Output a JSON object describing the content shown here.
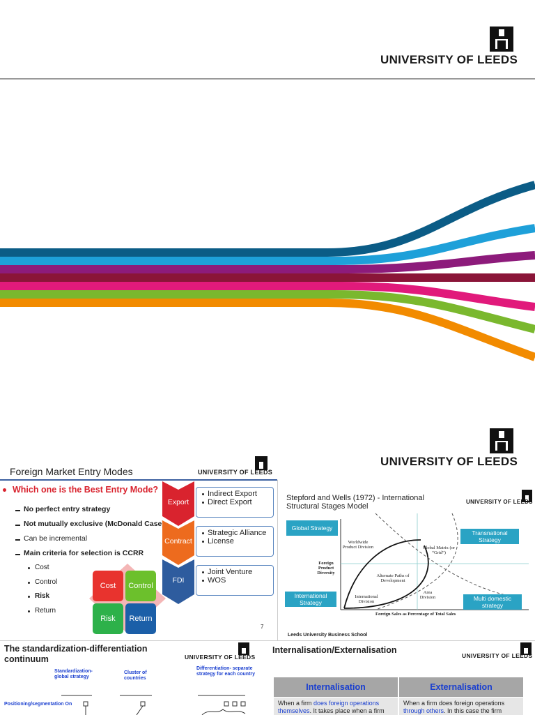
{
  "slide1": {
    "logo": "UNIVERSITY OF LEEDS"
  },
  "slide2": {
    "logo": "UNIVERSITY OF LEEDS"
  },
  "entry_modes": {
    "title": "Foreign Market Entry Modes",
    "logo": "UNIVERSITY OF LEEDS",
    "question": "Which one is the Best Entry Mode?",
    "points": [
      "No perfect entry strategy",
      "Not mutually exclusive (McDonald Case)",
      "Can be incremental",
      "Main criteria for selection is CCRR"
    ],
    "criteria": [
      "Cost",
      "Control",
      "Risk",
      "Return"
    ],
    "grid": [
      "Cost",
      "Control",
      "Risk",
      "Return"
    ],
    "modes": [
      {
        "label": "Export",
        "items": [
          "Indirect Export",
          "Direct Export"
        ]
      },
      {
        "label": "Contract",
        "items": [
          "Strategic Alliance",
          "License"
        ]
      },
      {
        "label": "FDI",
        "items": [
          "Joint Venture",
          "WOS"
        ]
      }
    ],
    "page": "7"
  },
  "stages": {
    "title": "Stepford and Wells (1972) - International Structural Stages Model",
    "logo": "UNIVERSITY OF LEEDS",
    "strategies": [
      "Global Strategy",
      "Transnational Strategy",
      "International Strategy",
      "Multi domestic strategy"
    ],
    "diagram": [
      "Worldwide Product Division",
      "Global Matrix (or “Grid”)",
      "Foreign Product Diversity",
      "Alternate Paths of Development",
      "Area Division",
      "International Division"
    ],
    "x_axis": "Foreign Sales as Percentage of Total Sales",
    "footer": "Leeds University Business School"
  },
  "continuum": {
    "title": "The standardization-differentiation continuum",
    "logo": "UNIVERSITY OF LEEDS",
    "columns": [
      "Standardization- global strategy",
      "Cluster of countries",
      "Differentiation- separate strategy for each country"
    ],
    "row": "Positioning/segmentation On"
  },
  "internalisation": {
    "title": "Internalisation/Externalisation",
    "logo": "UNIVERSITY OF LEEDS",
    "headers": [
      "Internalisation",
      "Externalisation"
    ],
    "cells": [
      [
        "When a firm ",
        "does foreign operations themselves",
        ". It takes place when a firm"
      ],
      [
        "When a firm does foreign operations ",
        "through others",
        ". In this case the firm"
      ]
    ]
  }
}
